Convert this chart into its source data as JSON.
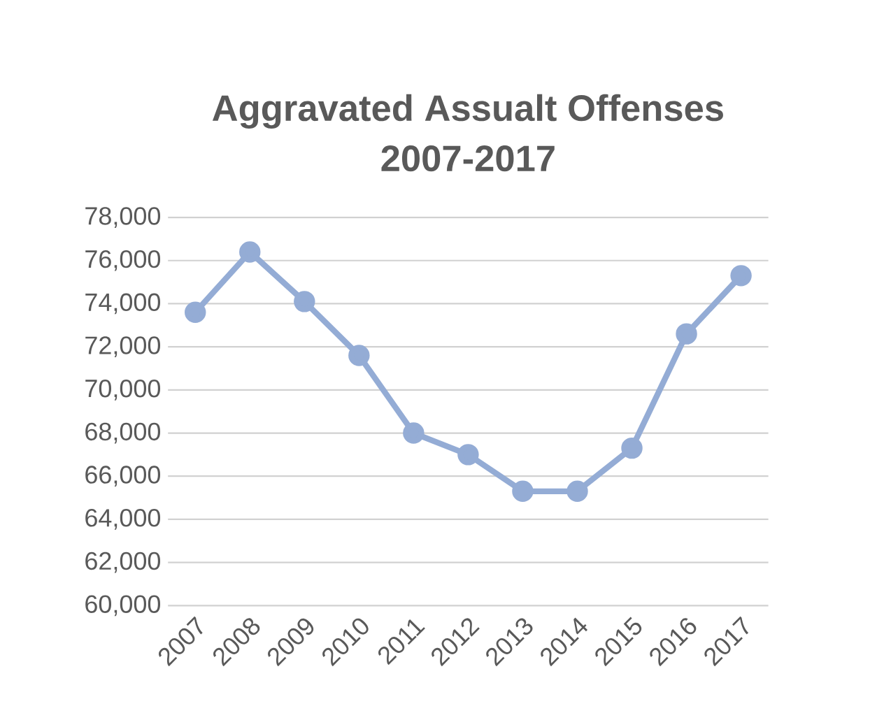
{
  "chart_data": {
    "type": "line",
    "title": "Aggravated Assualt Offenses 2007-2017",
    "categories": [
      "2007",
      "2008",
      "2009",
      "2010",
      "2011",
      "2012",
      "2013",
      "2014",
      "2015",
      "2016",
      "2017"
    ],
    "values": [
      73600,
      76400,
      74100,
      71600,
      68000,
      67000,
      65300,
      65300,
      67300,
      72600,
      75300
    ],
    "color": "#94acd5",
    "ylim": [
      60000,
      78000
    ],
    "yticks": [
      {
        "value": 60000,
        "label": "60,000"
      },
      {
        "value": 62000,
        "label": "62,000"
      },
      {
        "value": 64000,
        "label": "64,000"
      },
      {
        "value": 66000,
        "label": "66,000"
      },
      {
        "value": 68000,
        "label": "68,000"
      },
      {
        "value": 70000,
        "label": "70,000"
      },
      {
        "value": 72000,
        "label": "72,000"
      },
      {
        "value": 74000,
        "label": "74,000"
      },
      {
        "value": 76000,
        "label": "76,000"
      },
      {
        "value": 78000,
        "label": "78,000"
      }
    ],
    "grid": "y",
    "marker": "circle"
  }
}
